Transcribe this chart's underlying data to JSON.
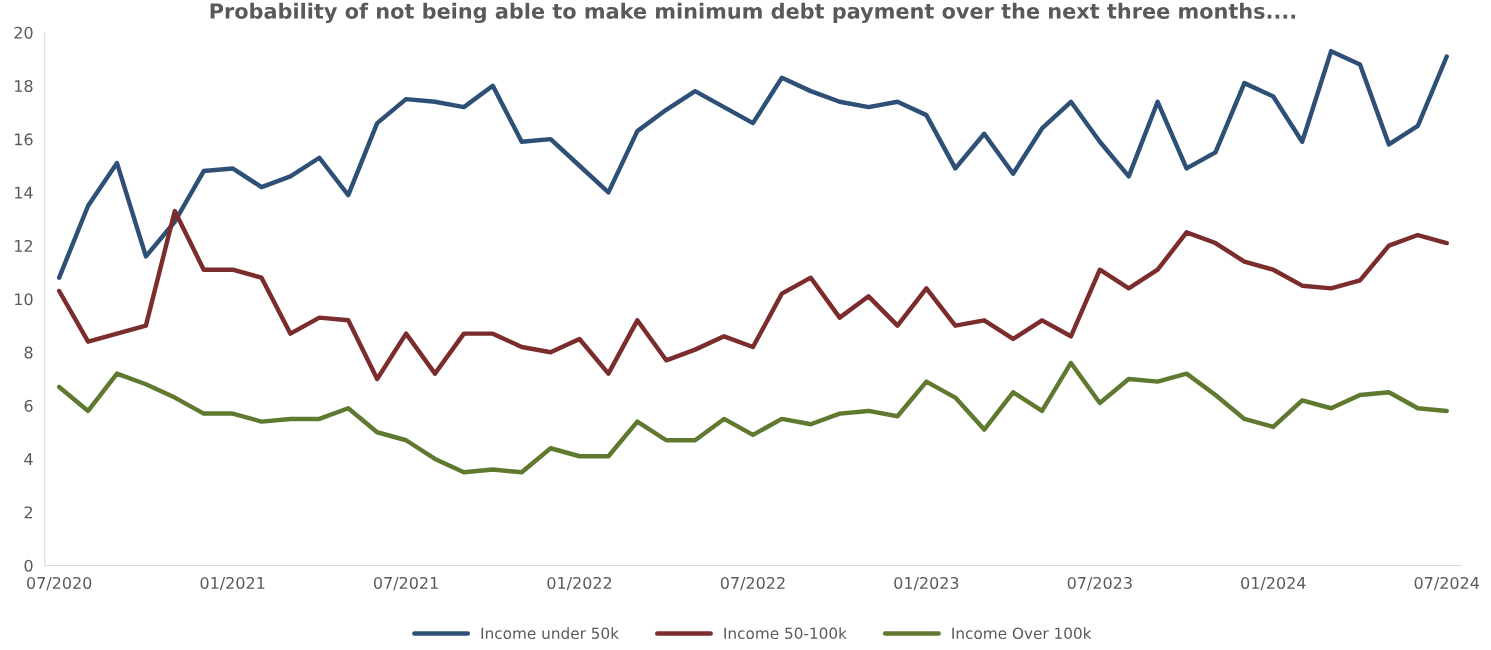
{
  "chart_data": {
    "type": "line",
    "title": "Probability of not being able to make minimum debt payment over the next three months....",
    "categories": [
      "07/2020",
      null,
      null,
      null,
      null,
      null,
      "01/2021",
      null,
      null,
      null,
      null,
      null,
      "07/2021",
      null,
      null,
      null,
      null,
      null,
      "01/2022",
      null,
      null,
      null,
      null,
      null,
      "07/2022",
      null,
      null,
      null,
      null,
      null,
      "01/2023",
      null,
      null,
      null,
      null,
      null,
      "07/2023",
      null,
      null,
      null,
      null,
      null,
      "01/2024",
      null,
      null,
      null,
      null,
      null,
      "07/2024"
    ],
    "series": [
      {
        "name": "Income under 50k",
        "color": "#2e5077",
        "values": [
          10.8,
          13.5,
          15.1,
          11.6,
          12.9,
          14.8,
          14.9,
          14.2,
          14.6,
          15.3,
          13.9,
          16.6,
          17.5,
          17.4,
          17.2,
          18.0,
          15.9,
          16.0,
          15.0,
          14.0,
          16.3,
          17.1,
          17.8,
          17.2,
          16.6,
          18.3,
          17.8,
          17.4,
          17.2,
          17.4,
          16.9,
          14.9,
          16.2,
          14.7,
          16.4,
          17.4,
          15.9,
          14.6,
          17.4,
          14.9,
          15.5,
          18.1,
          17.6,
          15.9,
          19.3,
          18.8,
          15.8,
          16.5,
          19.1
        ]
      },
      {
        "name": "Income 50-100k",
        "color": "#7b2c2c",
        "values": [
          10.3,
          8.4,
          8.7,
          9.0,
          13.3,
          11.1,
          11.1,
          10.8,
          8.7,
          9.3,
          9.2,
          7.0,
          8.7,
          7.2,
          8.7,
          8.7,
          8.2,
          8.0,
          8.5,
          7.2,
          9.2,
          7.7,
          8.1,
          8.6,
          8.2,
          10.2,
          10.8,
          9.3,
          10.1,
          9.0,
          10.4,
          9.0,
          9.2,
          8.5,
          9.2,
          8.6,
          11.1,
          10.4,
          11.1,
          12.5,
          12.1,
          11.4,
          11.1,
          10.5,
          10.4,
          10.7,
          12.0,
          12.4,
          12.1
        ]
      },
      {
        "name": "Income Over 100k",
        "color": "#5f7a30",
        "values": [
          6.7,
          5.8,
          7.2,
          6.8,
          6.3,
          5.7,
          5.7,
          5.4,
          5.5,
          5.5,
          5.9,
          5.0,
          4.7,
          4.0,
          3.5,
          3.6,
          3.5,
          4.4,
          4.1,
          4.1,
          5.4,
          4.7,
          4.7,
          5.5,
          4.9,
          5.5,
          5.3,
          5.7,
          5.8,
          5.6,
          6.9,
          6.3,
          5.1,
          6.5,
          5.8,
          7.6,
          6.1,
          7.0,
          6.9,
          7.2,
          6.4,
          5.5,
          5.2,
          6.2,
          5.9,
          6.4,
          6.5,
          5.9,
          5.8
        ]
      }
    ],
    "ylim": [
      0,
      20
    ],
    "yticks": [
      0,
      2,
      4,
      6,
      8,
      10,
      12,
      14,
      16,
      18,
      20
    ],
    "grid": false,
    "legend": "bottom",
    "marker": "none",
    "line_style": "solid"
  }
}
